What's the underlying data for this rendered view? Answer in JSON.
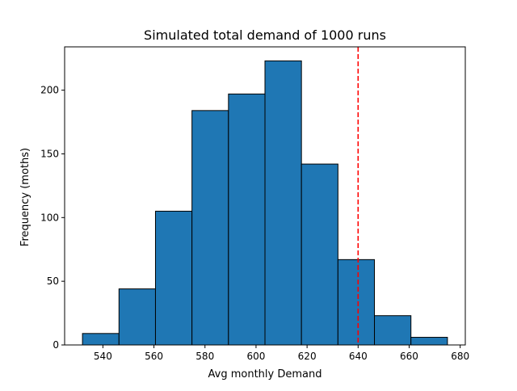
{
  "chart_data": {
    "type": "bar",
    "subtype": "histogram",
    "title": "Simulated total demand of 1000 runs",
    "xlabel": "Avg monthly Demand",
    "ylabel": "Frequency (moths)",
    "xlim": [
      525,
      682
    ],
    "ylim": [
      0,
      234
    ],
    "xticks": [
      540,
      560,
      580,
      600,
      620,
      640,
      660,
      680
    ],
    "yticks": [
      0,
      50,
      100,
      150,
      200
    ],
    "bins": [
      {
        "start": 532,
        "end": 546.3,
        "count": 9
      },
      {
        "start": 546.3,
        "end": 560.6,
        "count": 44
      },
      {
        "start": 560.6,
        "end": 574.9,
        "count": 105
      },
      {
        "start": 574.9,
        "end": 589.2,
        "count": 184
      },
      {
        "start": 589.2,
        "end": 603.5,
        "count": 197
      },
      {
        "start": 603.5,
        "end": 617.8,
        "count": 223
      },
      {
        "start": 617.8,
        "end": 632.1,
        "count": 142
      },
      {
        "start": 632.1,
        "end": 646.4,
        "count": 67
      },
      {
        "start": 646.4,
        "end": 660.7,
        "count": 23
      },
      {
        "start": 660.7,
        "end": 675,
        "count": 6
      }
    ],
    "reference_line": {
      "x": 640,
      "color": "#ff0000",
      "style": "dashed"
    },
    "bar_color": "#1f77b4",
    "edge_color": "#000000",
    "grid": false,
    "legend": false
  }
}
